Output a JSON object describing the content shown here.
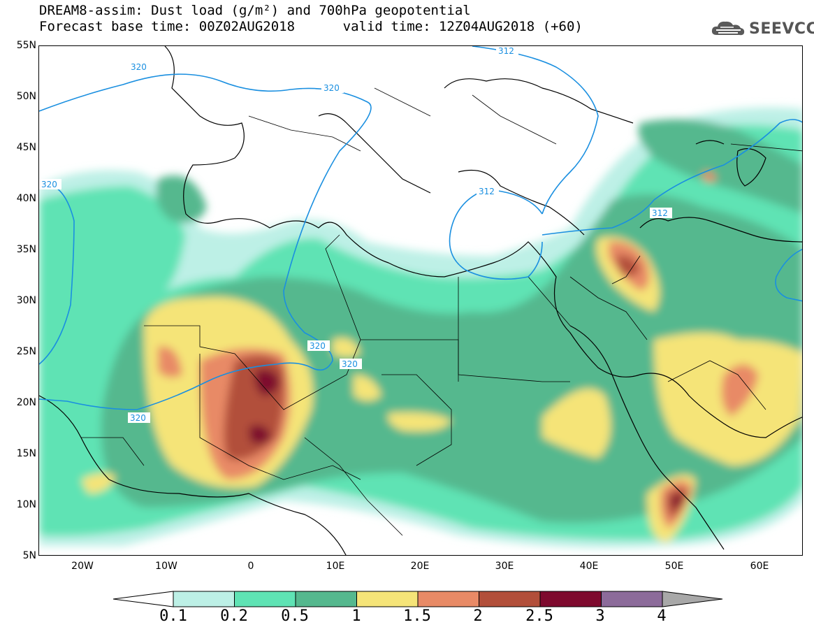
{
  "title": {
    "line1": "DREAM8-assim: Dust load (g/m²) and 700hPa geopotential",
    "line2": "Forecast base time: 00Z02AUG2018      valid time: 12Z04AUG2018 (+60)"
  },
  "logo_text": "SEEVCCC",
  "latitude_labels": [
    "55N",
    "50N",
    "45N",
    "40N",
    "35N",
    "30N",
    "25N",
    "20N",
    "15N",
    "10N",
    "5N"
  ],
  "longitude_labels": [
    "20W",
    "10W",
    "0",
    "10E",
    "20E",
    "30E",
    "40E",
    "50E",
    "60E"
  ],
  "contour_labels": [
    "320",
    "320",
    "320",
    "320",
    "320",
    "320",
    "312",
    "312",
    "312"
  ],
  "colorbar": {
    "labels": [
      "0.1",
      "0.2",
      "0.5",
      "1",
      "1.5",
      "2",
      "2.5",
      "3",
      "4"
    ],
    "colors": [
      "#ffffff",
      "#bdf0e6",
      "#5fe3b4",
      "#55b88e",
      "#f5e478",
      "#e88a66",
      "#b24f3a",
      "#7e0a2e",
      "#8c6b9a",
      "#a8a8a8"
    ]
  },
  "palette": {
    "geopotential_line": "#1a8fe0",
    "coastline": "#000000"
  }
}
